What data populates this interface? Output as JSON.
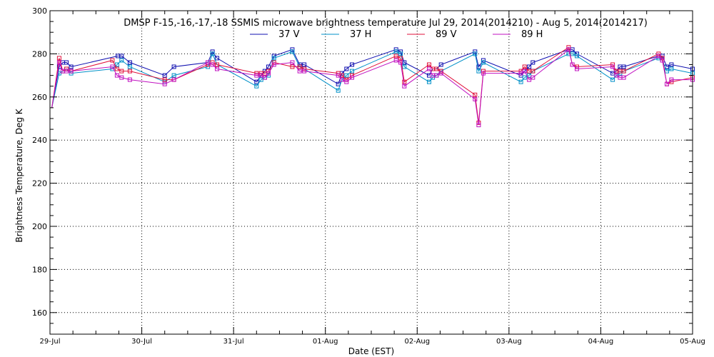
{
  "chart_data": {
    "type": "line",
    "title": "DMSP F-15,-16,-17,-18 SSMIS microwave brightness temperature Jul 29, 2014(2014210) - Aug  5, 2014(2014217)",
    "xlabel": "Date (EST)",
    "ylabel": "Brightness Temperature, Deg K",
    "xlim": [
      0,
      7
    ],
    "ylim": [
      150,
      300
    ],
    "yticks": [
      160,
      180,
      200,
      220,
      240,
      260,
      280,
      300
    ],
    "xticks": [
      {
        "value": 0,
        "label": "29-Jul"
      },
      {
        "value": 1,
        "label": "30-Jul"
      },
      {
        "value": 2,
        "label": "31-Jul"
      },
      {
        "value": 3,
        "label": "01-Aug"
      },
      {
        "value": 4,
        "label": "02-Aug"
      },
      {
        "value": 5,
        "label": "03-Aug"
      },
      {
        "value": 6,
        "label": "04-Aug"
      },
      {
        "value": 7,
        "label": "05-Aug"
      }
    ],
    "grid": true,
    "legend_position": "top-center",
    "series": [
      {
        "name": "37 V",
        "color": "#1010b0",
        "x": [
          0.02,
          0.1,
          0.14,
          0.18,
          0.23,
          0.74,
          0.78,
          0.87,
          1.25,
          1.35,
          1.72,
          1.77,
          1.82,
          2.25,
          2.3,
          2.34,
          2.38,
          2.44,
          2.64,
          2.72,
          2.77,
          3.14,
          3.18,
          3.23,
          3.29,
          3.77,
          3.82,
          3.86,
          4.13,
          4.17,
          4.21,
          4.26,
          4.63,
          4.67,
          4.72,
          5.13,
          5.17,
          5.22,
          5.26,
          5.65,
          5.69,
          5.74,
          6.13,
          6.17,
          6.21,
          6.25,
          6.63,
          6.67,
          6.72,
          6.77,
          7.0
        ],
        "y": [
          255,
          274,
          276,
          276,
          274,
          279,
          279,
          276,
          270,
          274,
          276,
          281,
          278,
          267,
          270,
          272,
          274,
          279,
          282,
          275,
          275,
          266,
          271,
          273,
          275,
          282,
          281,
          276,
          270,
          273,
          273,
          275,
          281,
          274,
          277,
          270,
          272,
          274,
          276,
          282,
          282,
          280,
          271,
          272,
          274,
          274,
          279,
          279,
          274,
          275,
          273
        ]
      },
      {
        "name": "37 H",
        "color": "#0090c8",
        "x": [
          0.02,
          0.1,
          0.14,
          0.18,
          0.23,
          0.68,
          0.73,
          0.78,
          0.87,
          1.25,
          1.35,
          1.72,
          1.77,
          1.82,
          2.25,
          2.3,
          2.34,
          2.38,
          2.44,
          2.64,
          2.72,
          2.77,
          3.14,
          3.18,
          3.23,
          3.29,
          3.77,
          3.82,
          3.86,
          4.13,
          4.17,
          4.21,
          4.26,
          4.63,
          4.67,
          4.72,
          5.13,
          5.17,
          5.22,
          5.26,
          5.65,
          5.69,
          5.74,
          6.13,
          6.17,
          6.21,
          6.25,
          6.63,
          6.67,
          6.72,
          6.77,
          7.0
        ],
        "y": [
          255,
          271,
          272,
          273,
          271,
          273,
          275,
          277,
          274,
          267,
          270,
          274,
          280,
          275,
          265,
          268,
          269,
          270,
          278,
          281,
          274,
          273,
          263,
          268,
          270,
          272,
          281,
          280,
          274,
          267,
          269,
          270,
          272,
          280,
          272,
          276,
          267,
          269,
          270,
          272,
          280,
          280,
          279,
          268,
          270,
          271,
          272,
          278,
          277,
          272,
          273,
          271
        ]
      },
      {
        "name": "89 V",
        "color": "#e0103a",
        "x": [
          0.02,
          0.1,
          0.14,
          0.18,
          0.23,
          0.68,
          0.73,
          0.78,
          0.87,
          1.25,
          1.35,
          1.72,
          1.77,
          1.82,
          2.25,
          2.3,
          2.34,
          2.38,
          2.44,
          2.64,
          2.72,
          2.77,
          3.14,
          3.18,
          3.23,
          3.29,
          3.77,
          3.82,
          3.86,
          4.13,
          4.17,
          4.21,
          4.26,
          4.63,
          4.67,
          4.72,
          5.13,
          5.17,
          5.22,
          5.26,
          5.65,
          5.69,
          5.74,
          6.13,
          6.17,
          6.21,
          6.25,
          6.63,
          6.67,
          6.72,
          6.77,
          7.0
        ],
        "y": [
          255,
          278,
          272,
          273,
          272,
          277,
          273,
          272,
          272,
          268,
          268,
          275,
          276,
          275,
          271,
          271,
          271,
          272,
          276,
          274,
          274,
          273,
          271,
          270,
          268,
          270,
          279,
          278,
          267,
          275,
          273,
          273,
          272,
          261,
          248,
          272,
          272,
          274,
          272,
          272,
          283,
          275,
          274,
          275,
          272,
          272,
          272,
          280,
          278,
          266,
          267,
          269
        ]
      },
      {
        "name": "89 H",
        "color": "#c010c0",
        "x": [
          0.02,
          0.1,
          0.14,
          0.18,
          0.23,
          0.68,
          0.73,
          0.78,
          0.87,
          1.25,
          1.35,
          1.72,
          1.77,
          1.82,
          2.25,
          2.3,
          2.34,
          2.38,
          2.44,
          2.64,
          2.72,
          2.77,
          3.14,
          3.18,
          3.23,
          3.29,
          3.77,
          3.82,
          3.86,
          4.13,
          4.17,
          4.21,
          4.26,
          4.63,
          4.67,
          4.72,
          5.13,
          5.17,
          5.22,
          5.26,
          5.65,
          5.69,
          5.74,
          6.13,
          6.17,
          6.21,
          6.25,
          6.63,
          6.67,
          6.72,
          6.77,
          7.0
        ],
        "y": [
          255,
          276,
          272,
          272,
          272,
          274,
          270,
          269,
          268,
          266,
          268,
          276,
          275,
          273,
          270,
          270,
          269,
          271,
          275,
          276,
          272,
          272,
          270,
          268,
          267,
          269,
          277,
          276,
          265,
          273,
          270,
          270,
          271,
          259,
          247,
          271,
          271,
          272,
          268,
          269,
          282,
          275,
          273,
          274,
          270,
          269,
          269,
          279,
          277,
          266,
          268,
          268
        ]
      }
    ]
  }
}
